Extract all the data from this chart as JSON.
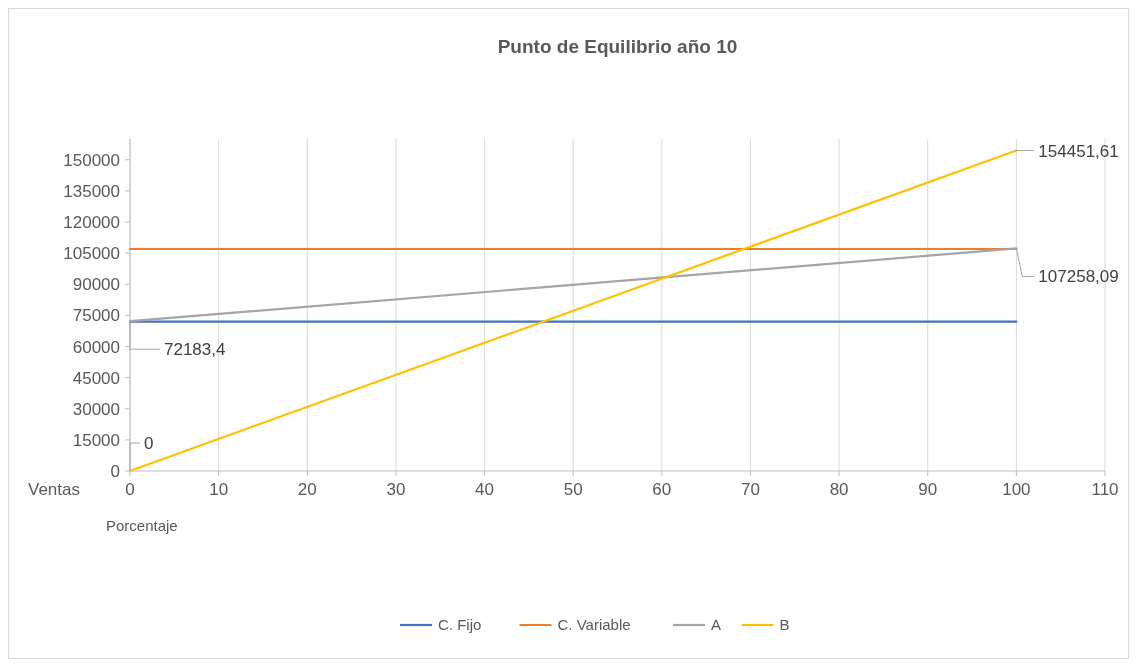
{
  "chart_data": {
    "type": "line",
    "title": "Punto de Equilibrio año 10",
    "xlabel": "Porcentaje",
    "ylabel": "Ventas",
    "xlim": [
      0,
      110
    ],
    "xticks": [
      0,
      10,
      20,
      30,
      40,
      50,
      60,
      70,
      80,
      90,
      100,
      110
    ],
    "ylim": [
      0,
      160000
    ],
    "yticks": [
      0,
      15000,
      30000,
      45000,
      60000,
      75000,
      90000,
      105000,
      120000,
      135000,
      150000
    ],
    "grid": "x",
    "legend": "bottom",
    "marker": "none",
    "line_style": "solid",
    "x": [
      0,
      100
    ],
    "series": [
      {
        "name": "C. Fijo",
        "color": "#4472c4",
        "values": [
          72000,
          72000
        ]
      },
      {
        "name": "C. Variable",
        "color": "#ed7d31",
        "values": [
          107000,
          107000
        ]
      },
      {
        "name": "A",
        "color": "#a5a5a5",
        "values": [
          72183.4,
          107258.09
        ],
        "value_labels": [
          "72183,4",
          "107258,09"
        ]
      },
      {
        "name": "B",
        "color": "#ffc000",
        "values": [
          0,
          154451.61
        ],
        "value_labels": [
          "0",
          "154451,61"
        ]
      }
    ]
  }
}
